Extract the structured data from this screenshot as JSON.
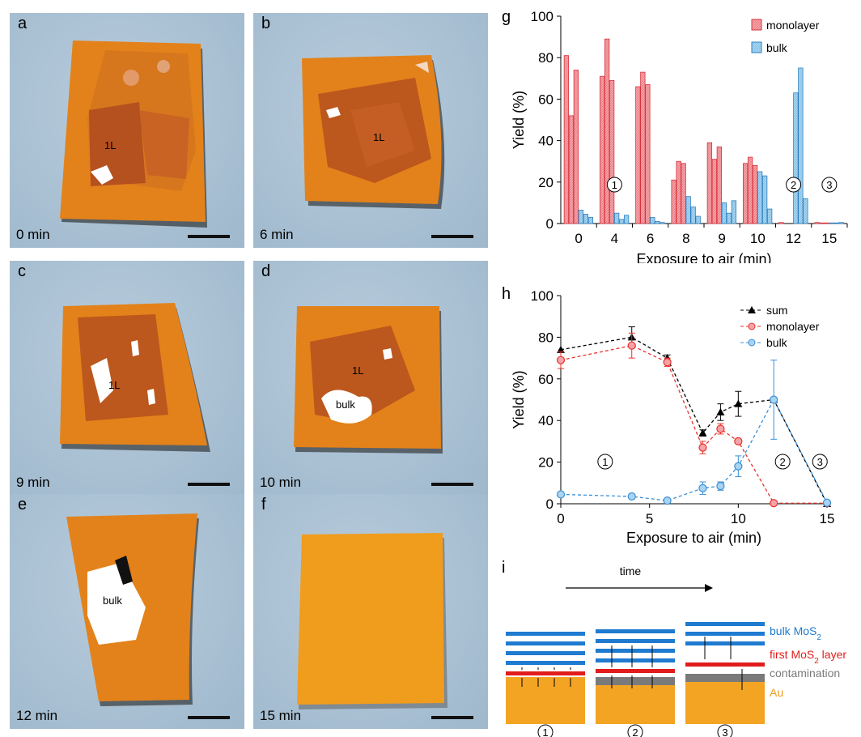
{
  "photos": {
    "a": {
      "letter": "a",
      "time": "0 min",
      "label": "1L"
    },
    "b": {
      "letter": "b",
      "time": "6 min",
      "label": "1L"
    },
    "c": {
      "letter": "c",
      "time": "9 min",
      "label": "1L"
    },
    "d": {
      "letter": "d",
      "time": "10 min",
      "label_1l": "1L",
      "label_bulk": "bulk"
    },
    "e": {
      "letter": "e",
      "time": "12 min",
      "label_bulk": "bulk"
    },
    "f": {
      "letter": "f",
      "time": "15 min"
    }
  },
  "chart_data": [
    {
      "panel": "g",
      "type": "bar",
      "xlabel": "Exposure to air (min)",
      "ylabel": "Yield (%)",
      "ylim": [
        0,
        100
      ],
      "yticks": [
        0,
        20,
        40,
        60,
        80,
        100
      ],
      "categories": [
        "0",
        "4",
        "6",
        "8",
        "9",
        "10",
        "12",
        "15"
      ],
      "series": [
        {
          "name": "monolayer",
          "color": "#f4a3a8",
          "values": [
            [
              81,
              52,
              74
            ],
            [
              71,
              89,
              69
            ],
            [
              66,
              73,
              67
            ],
            [
              21,
              30,
              29
            ],
            [
              39,
              31,
              37
            ],
            [
              29,
              32,
              28
            ],
            [
              0.5,
              0,
              0
            ],
            [
              0.5,
              0.3,
              0.3
            ]
          ]
        },
        {
          "name": "bulk",
          "color": "#a8d4f0",
          "values": [
            [
              6.5,
              4.5,
              3
            ],
            [
              5,
              2,
              4
            ],
            [
              3,
              1,
              0.5
            ],
            [
              13,
              8,
              3.5
            ],
            [
              10,
              5,
              11
            ],
            [
              25,
              23,
              7
            ],
            [
              63,
              75,
              12
            ],
            [
              0.3,
              0.3,
              0.5
            ]
          ]
        }
      ],
      "markers": [
        "①",
        "②",
        "③"
      ],
      "legend": "top-right"
    },
    {
      "panel": "h",
      "type": "line",
      "xlabel": "Exposure to air (min)",
      "ylabel": "Yield (%)",
      "xlim": [
        0,
        15
      ],
      "ylim": [
        0,
        100
      ],
      "xticks": [
        0,
        5,
        10,
        15
      ],
      "yticks": [
        0,
        20,
        40,
        60,
        80,
        100
      ],
      "x": [
        0,
        4,
        6,
        8,
        9,
        10,
        12,
        15
      ],
      "series": [
        {
          "name": "sum",
          "color": "#000000",
          "marker": "triangle",
          "values": [
            74,
            80,
            70,
            34,
            44,
            48,
            50,
            0
          ],
          "errors": [
            0,
            5,
            1.5,
            1.5,
            4,
            6,
            0,
            0
          ]
        },
        {
          "name": "monolayer",
          "color": "#e8322c",
          "marker": "circle",
          "values": [
            69,
            76,
            68,
            27,
            36,
            30,
            0.3,
            0.3
          ],
          "errors": [
            4,
            6,
            2,
            3,
            2.5,
            1,
            0,
            0
          ]
        },
        {
          "name": "bulk",
          "color": "#3a8fd6",
          "marker": "circle",
          "values": [
            4.5,
            3.5,
            1.5,
            7.5,
            8.5,
            18,
            50,
            0.5
          ],
          "errors": [
            0,
            0,
            0,
            3,
            2,
            5,
            19,
            0
          ]
        }
      ],
      "markers": [
        "①",
        "②",
        "③"
      ],
      "legend": "top-right"
    }
  ],
  "schematic": {
    "panel": "i",
    "time_label": "time",
    "legend": [
      {
        "text": "bulk MoS",
        "sub": "2",
        "after": "",
        "color": "#1f7bd0"
      },
      {
        "text": "first MoS",
        "sub": "2",
        "after": " layer",
        "color": "#e21c1c"
      },
      {
        "text": "contamination",
        "sub": "",
        "after": "",
        "color": "#7a7a7a"
      },
      {
        "text": "Au",
        "sub": "",
        "after": "",
        "color": "#f29c1a"
      }
    ],
    "stages": [
      "①",
      "②",
      "③"
    ]
  }
}
